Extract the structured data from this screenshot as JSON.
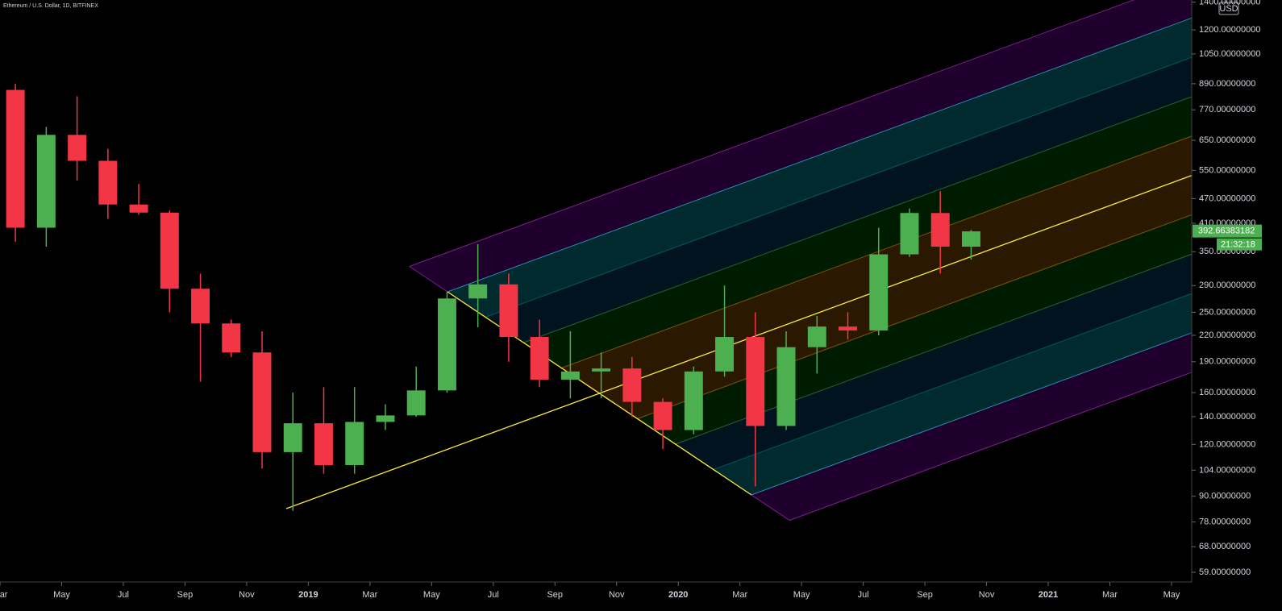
{
  "chart_data": {
    "type": "candlestick",
    "title": "Ethereum / U.S. Dollar, 1D, BITFINEX",
    "currency": "USD",
    "log": true,
    "up_color": "#4caf50",
    "down_color": "#f23645",
    "x": [
      "2018-03",
      "2018-04",
      "2018-05",
      "2018-06",
      "2018-07",
      "2018-08",
      "2018-09",
      "2018-10",
      "2018-11",
      "2018-12",
      "2019-01",
      "2019-02",
      "2019-03",
      "2019-04",
      "2019-05",
      "2019-06",
      "2019-07",
      "2019-08",
      "2019-09",
      "2019-10",
      "2019-11",
      "2019-12",
      "2020-01",
      "2020-02",
      "2020-03",
      "2020-04",
      "2020-05",
      "2020-06",
      "2020-07",
      "2020-08",
      "2020-09",
      "2020-10"
    ],
    "open": [
      860,
      400,
      670,
      580,
      455,
      435,
      285,
      235,
      200,
      115,
      135,
      107,
      136,
      141,
      162,
      270,
      292,
      218,
      172,
      180,
      183,
      152,
      130,
      180,
      218,
      133,
      206,
      231,
      226,
      345,
      434,
      360
    ],
    "high": [
      890,
      700,
      830,
      620,
      510,
      440,
      310,
      240,
      225,
      160,
      165,
      165,
      150,
      185,
      280,
      365,
      310,
      240,
      225,
      200,
      195,
      155,
      185,
      290,
      250,
      225,
      245,
      250,
      400,
      445,
      490,
      395
    ],
    "low": [
      370,
      360,
      520,
      420,
      430,
      250,
      170,
      195,
      105,
      83,
      102,
      102,
      130,
      140,
      160,
      230,
      190,
      165,
      155,
      155,
      140,
      117,
      127,
      175,
      95,
      130,
      178,
      215,
      220,
      340,
      310,
      335
    ],
    "close": [
      400,
      670,
      580,
      455,
      435,
      285,
      235,
      200,
      115,
      135,
      107,
      136,
      141,
      162,
      270,
      292,
      218,
      172,
      180,
      183,
      152,
      130,
      180,
      218,
      133,
      206,
      231,
      226,
      345,
      434,
      360,
      392
    ],
    "xlim": [
      "2018-03",
      "2021-05"
    ],
    "xticks": [
      {
        "value": "2018-03",
        "label": "Mar"
      },
      {
        "value": "2018-05",
        "label": "May"
      },
      {
        "value": "2018-07",
        "label": "Jul"
      },
      {
        "value": "2018-09",
        "label": "Sep"
      },
      {
        "value": "2018-11",
        "label": "Nov"
      },
      {
        "value": "2019-01",
        "label": "2019"
      },
      {
        "value": "2019-03",
        "label": "Mar"
      },
      {
        "value": "2019-05",
        "label": "May"
      },
      {
        "value": "2019-07",
        "label": "Jul"
      },
      {
        "value": "2019-09",
        "label": "Sep"
      },
      {
        "value": "2019-11",
        "label": "Nov"
      },
      {
        "value": "2020-01",
        "label": "2020"
      },
      {
        "value": "2020-03",
        "label": "Mar"
      },
      {
        "value": "2020-05",
        "label": "May"
      },
      {
        "value": "2020-07",
        "label": "Jul"
      },
      {
        "value": "2020-09",
        "label": "Sep"
      },
      {
        "value": "2020-11",
        "label": "Nov"
      },
      {
        "value": "2021-01",
        "label": "2021"
      },
      {
        "value": "2021-03",
        "label": "Mar"
      },
      {
        "value": "2021-05",
        "label": "May"
      }
    ],
    "ylim": [
      55.9,
      1417
    ],
    "yticks": [
      {
        "value": 1400,
        "label": "1400.00000000"
      },
      {
        "value": 1200,
        "label": "1200.00000000"
      },
      {
        "value": 1050,
        "label": "1050.00000000"
      },
      {
        "value": 890,
        "label": "890.00000000"
      },
      {
        "value": 770,
        "label": "770.00000000"
      },
      {
        "value": 650,
        "label": "650.00000000"
      },
      {
        "value": 550,
        "label": "550.00000000"
      },
      {
        "value": 470,
        "label": "470.00000000"
      },
      {
        "value": 410,
        "label": "410.00000000"
      },
      {
        "value": 350,
        "label": "350.00000000"
      },
      {
        "value": 290,
        "label": "290.00000000"
      },
      {
        "value": 250,
        "label": "250.00000000"
      },
      {
        "value": 220,
        "label": "220.00000000"
      },
      {
        "value": 190,
        "label": "190.00000000"
      },
      {
        "value": 160,
        "label": "160.00000000"
      },
      {
        "value": 140,
        "label": "140.00000000"
      },
      {
        "value": 120,
        "label": "120.00000000"
      },
      {
        "value": 104,
        "label": "104.00000000"
      },
      {
        "value": 90,
        "label": "90.00000000"
      },
      {
        "value": 78,
        "label": "78.00000000"
      },
      {
        "value": 68,
        "label": "68.00000000"
      },
      {
        "value": 59,
        "label": "59.00000000"
      }
    ],
    "last_price": 392.66383182,
    "countdown": "21:32:18"
  }
}
